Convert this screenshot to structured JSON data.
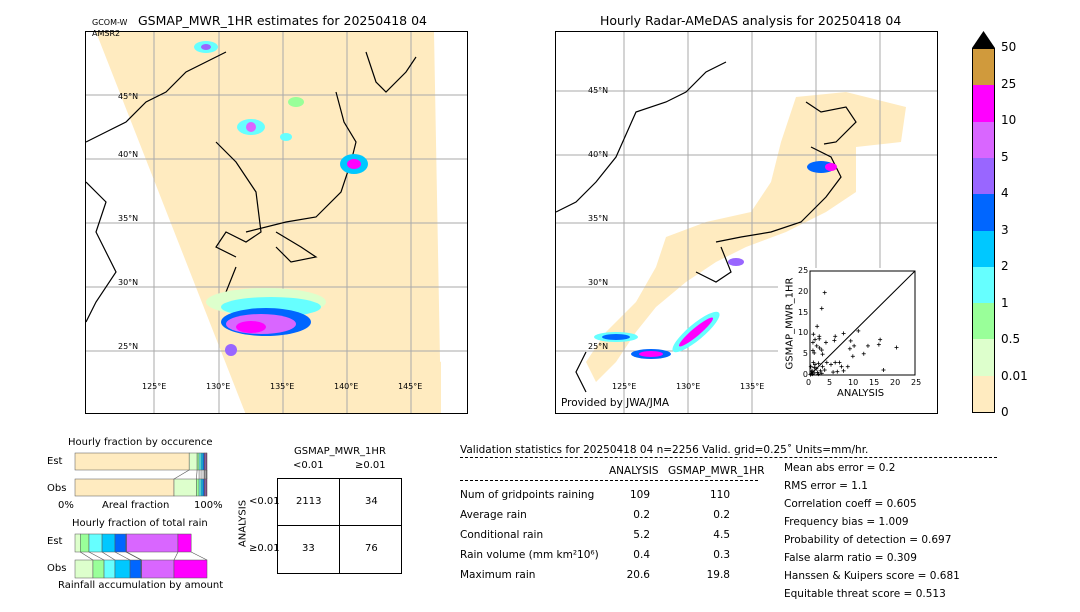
{
  "left_map": {
    "title": "GSMAP_MWR_1HR estimates for 20250418 04",
    "satellite_label_1": "GCOM-W",
    "satellite_label_2": "AMSR2",
    "lat_labels": [
      "45°N",
      "40°N",
      "35°N",
      "30°N",
      "25°N"
    ],
    "lon_labels": [
      "125°E",
      "130°E",
      "135°E",
      "140°E",
      "145°E"
    ]
  },
  "right_map": {
    "title": "Hourly Radar-AMeDAS analysis for 20250418 04",
    "lat_labels": [
      "45°N",
      "40°N",
      "35°N",
      "30°N",
      "25°N"
    ],
    "lon_labels": [
      "125°E",
      "130°E",
      "135°E"
    ],
    "credit": "Provided by JWA/JMA"
  },
  "colorbar": {
    "labels": [
      "50",
      "25",
      "10",
      "5",
      "4",
      "3",
      "2",
      "1",
      "0.5",
      "0.01",
      "0"
    ],
    "colors": [
      "#d09a3c",
      "#ff00ff",
      "#d966ff",
      "#9966ff",
      "#0066ff",
      "#00c8ff",
      "#66ffff",
      "#99ff99",
      "#ddffcc",
      "#ffebc0"
    ],
    "extend_color": "#000000"
  },
  "chart_data": [
    {
      "type": "scatter",
      "xlabel": "ANALYSIS",
      "ylabel": "GSMAP_MWR_1HR",
      "xlim": [
        0,
        25
      ],
      "ylim": [
        0,
        25
      ],
      "xticks": [
        "0",
        "5",
        "10",
        "15",
        "20",
        "25"
      ],
      "yticks": [
        "0",
        "5",
        "10",
        "15",
        "20",
        "25"
      ],
      "points": [
        [
          3.5,
          19.8
        ],
        [
          2.8,
          16
        ],
        [
          1.7,
          11.7
        ],
        [
          0.8,
          9.8
        ],
        [
          2.2,
          9.3
        ],
        [
          2.2,
          8.7
        ],
        [
          1.2,
          8.5
        ],
        [
          0.7,
          7.8
        ],
        [
          3.8,
          7.8
        ],
        [
          1.6,
          7
        ],
        [
          2.3,
          6.5
        ],
        [
          2.8,
          6
        ],
        [
          0.7,
          5.9
        ],
        [
          1,
          5.3
        ],
        [
          3,
          5
        ],
        [
          6,
          9.3
        ],
        [
          8,
          10
        ],
        [
          11.5,
          10.6
        ],
        [
          5.8,
          8.3
        ],
        [
          9.7,
          8.2
        ],
        [
          10.5,
          7
        ],
        [
          13.8,
          7
        ],
        [
          16.7,
          8.5
        ],
        [
          16.4,
          7.3
        ],
        [
          20.6,
          6.6
        ],
        [
          10.2,
          4.5
        ],
        [
          12.8,
          5.1
        ],
        [
          9.5,
          6.3
        ],
        [
          17.5,
          1.2
        ],
        [
          6,
          3
        ],
        [
          7,
          3
        ],
        [
          5,
          2.5
        ],
        [
          4,
          3
        ],
        [
          7.5,
          2
        ],
        [
          6.5,
          0.8
        ],
        [
          8,
          1
        ],
        [
          9,
          2
        ],
        [
          5.5,
          0.7
        ],
        [
          0.3,
          0.3
        ],
        [
          0.5,
          1
        ],
        [
          1,
          0.5
        ],
        [
          1.5,
          1.5
        ],
        [
          2,
          0.2
        ],
        [
          0.2,
          2
        ],
        [
          1.2,
          2.5
        ],
        [
          2.5,
          1
        ],
        [
          3,
          2
        ],
        [
          0.8,
          3
        ],
        [
          0.4,
          0.8
        ],
        [
          1.8,
          0.6
        ],
        [
          2.8,
          0.4
        ],
        [
          3.5,
          1.2
        ],
        [
          0.1,
          0.1
        ],
        [
          0.6,
          0.2
        ],
        [
          1,
          1.8
        ],
        [
          2,
          2.8
        ]
      ],
      "diagonal": true
    },
    {
      "type": "bar",
      "title": "Hourly fraction by occurence",
      "categories": [
        "Est",
        "Obs"
      ],
      "xlabel": "Areal fraction",
      "xtick_labels": [
        "0%",
        "100%"
      ],
      "bins": [
        "<0.01",
        "0.01-0.5",
        "0.5-1",
        "1-2",
        "2-3",
        "3-4",
        "4-5",
        "5-10",
        "10-25",
        "25-50"
      ],
      "series": [
        {
          "name": "Est",
          "values": [
            0.865,
            0.06,
            0.015,
            0.015,
            0.015,
            0.01,
            0.005,
            0.008,
            0.005,
            0.002
          ]
        },
        {
          "name": "Obs",
          "values": [
            0.75,
            0.17,
            0.02,
            0.015,
            0.015,
            0.01,
            0.005,
            0.008,
            0.005,
            0.002
          ]
        }
      ]
    },
    {
      "type": "bar",
      "title": "Hourly fraction of total rain",
      "categories": [
        "Est",
        "Obs"
      ],
      "xlabel": "Rainfall accumulation by amount",
      "bins": [
        "0.01-0.5",
        "0.5-1",
        "1-2",
        "2-3",
        "3-4",
        "4-5",
        "5-10",
        "10-25"
      ],
      "series": [
        {
          "name": "Est",
          "values": [
            0.04,
            0.066,
            0.099,
            0.098,
            0.083,
            0.005,
            0.389,
            0.1
          ]
        },
        {
          "name": "Obs",
          "values": [
            0.136,
            0.084,
            0.083,
            0.114,
            0.083,
            0.005,
            0.245,
            0.25
          ]
        }
      ]
    }
  ],
  "contingency": {
    "col_title": "GSMAP_MWR_1HR",
    "col_headers": [
      "<0.01",
      "≥0.01"
    ],
    "row_title": "ANALYSIS",
    "row_headers": [
      "<0.01",
      "≥0.01"
    ],
    "cells": [
      [
        "2113",
        "34"
      ],
      [
        "33",
        "76"
      ]
    ]
  },
  "validation": {
    "header": "Validation statistics for 20250418 04  n=2256 Valid. grid=0.25˚ Units=mm/hr.",
    "col_analysis": "ANALYSIS",
    "col_gsmap": "GSMAP_MWR_1HR",
    "rows": [
      {
        "label": "Num of gridpoints raining",
        "analysis": "109",
        "gsmap": "110"
      },
      {
        "label": "Average rain",
        "analysis": "0.2",
        "gsmap": "0.2"
      },
      {
        "label": "Conditional rain",
        "analysis": "5.2",
        "gsmap": "4.5"
      },
      {
        "label": "Rain volume (mm km²10⁶)",
        "analysis": "0.4",
        "gsmap": "0.3"
      },
      {
        "label": "Maximum rain",
        "analysis": "20.6",
        "gsmap": "19.8"
      }
    ],
    "scores": [
      "Mean abs error =    0.2",
      "RMS error =    1.1",
      "Correlation coeff =  0.605",
      "Frequency bias =  1.009",
      "Probability of detection =  0.697",
      "False alarm ratio =  0.309",
      "Hanssen & Kuipers score =  0.681",
      "Equitable threat score =  0.513"
    ]
  }
}
